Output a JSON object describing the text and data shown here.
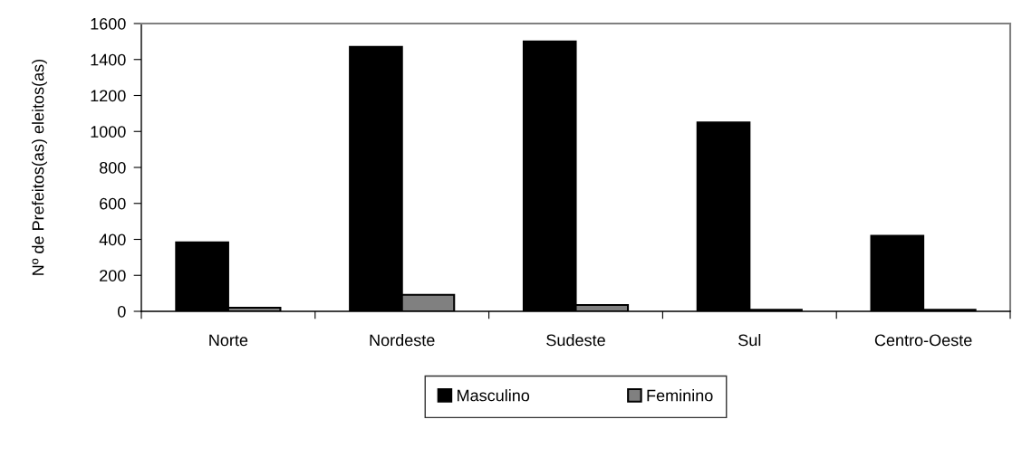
{
  "chart_data": {
    "type": "bar",
    "ylabel": "Nº de Prefeitos(as) eleitos(as)",
    "categories": [
      "Norte",
      "Nordeste",
      "Sudeste",
      "Sul",
      "Centro-Oeste"
    ],
    "series": [
      {
        "name": "Masculino",
        "color": "#000000",
        "values": [
          383,
          1470,
          1500,
          1050,
          420
        ]
      },
      {
        "name": "Feminino",
        "color": "#808080",
        "values": [
          20,
          92,
          35,
          8,
          8
        ]
      }
    ],
    "ylim": [
      0,
      1600
    ],
    "yticks": [
      0,
      200,
      400,
      600,
      800,
      1000,
      1200,
      1400,
      1600
    ],
    "legend": "bottom"
  }
}
